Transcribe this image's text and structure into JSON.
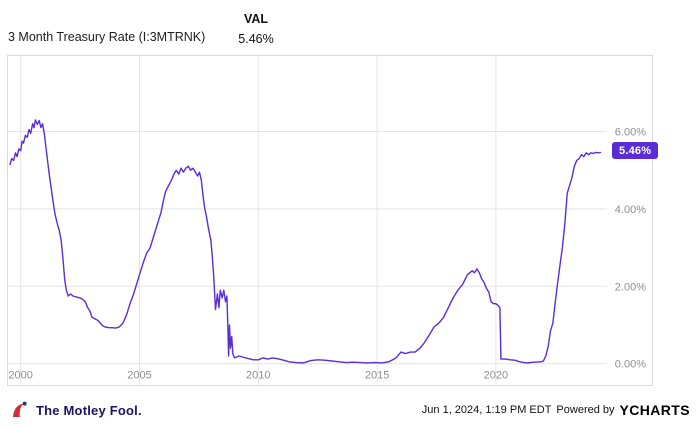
{
  "header": {
    "title": "3 Month Treasury Rate (I:3MTRNK)",
    "val_label": "VAL",
    "val_value": "5.46%"
  },
  "chart_data": {
    "type": "line",
    "title": "3 Month Treasury Rate (I:3MTRNK)",
    "xlabel": "",
    "ylabel": "",
    "xlim": [
      1999.55,
      2024.55
    ],
    "ylim": [
      -0.55,
      7.95
    ],
    "grid": true,
    "line_color": "#5b2dd5",
    "x_ticks": [
      {
        "x": 2000,
        "label": "2000"
      },
      {
        "x": 2005,
        "label": "2005"
      },
      {
        "x": 2010,
        "label": "2010"
      },
      {
        "x": 2015,
        "label": "2015"
      },
      {
        "x": 2020,
        "label": "2020"
      }
    ],
    "y_ticks": [
      {
        "v": 0,
        "label": "0.00%"
      },
      {
        "v": 2,
        "label": "2.00%"
      },
      {
        "v": 4,
        "label": "4.00%"
      },
      {
        "v": 6,
        "label": "6.00%"
      }
    ],
    "badge": {
      "label": "5.46%",
      "bg": "#5b2dd5",
      "text_color": "#ffffff"
    },
    "series": [
      {
        "name": "3 Month Treasury Rate",
        "points": [
          [
            1999.55,
            5.15
          ],
          [
            1999.62,
            5.3
          ],
          [
            1999.7,
            5.25
          ],
          [
            1999.78,
            5.45
          ],
          [
            1999.85,
            5.35
          ],
          [
            1999.92,
            5.55
          ],
          [
            2000.0,
            5.5
          ],
          [
            2000.06,
            5.75
          ],
          [
            2000.12,
            5.7
          ],
          [
            2000.2,
            5.9
          ],
          [
            2000.28,
            5.85
          ],
          [
            2000.35,
            6.05
          ],
          [
            2000.42,
            5.95
          ],
          [
            2000.5,
            6.2
          ],
          [
            2000.56,
            6.1
          ],
          [
            2000.62,
            6.3
          ],
          [
            2000.7,
            6.18
          ],
          [
            2000.78,
            6.28
          ],
          [
            2000.85,
            6.1
          ],
          [
            2000.92,
            6.2
          ],
          [
            2001.0,
            5.9
          ],
          [
            2001.06,
            5.6
          ],
          [
            2001.12,
            5.3
          ],
          [
            2001.2,
            4.9
          ],
          [
            2001.28,
            4.55
          ],
          [
            2001.36,
            4.2
          ],
          [
            2001.45,
            3.85
          ],
          [
            2001.55,
            3.6
          ],
          [
            2001.62,
            3.45
          ],
          [
            2001.7,
            3.2
          ],
          [
            2001.78,
            2.7
          ],
          [
            2001.85,
            2.2
          ],
          [
            2001.92,
            1.9
          ],
          [
            2002.0,
            1.75
          ],
          [
            2002.1,
            1.8
          ],
          [
            2002.2,
            1.75
          ],
          [
            2002.35,
            1.72
          ],
          [
            2002.5,
            1.7
          ],
          [
            2002.62,
            1.66
          ],
          [
            2002.72,
            1.6
          ],
          [
            2002.82,
            1.45
          ],
          [
            2002.92,
            1.35
          ],
          [
            2003.0,
            1.2
          ],
          [
            2003.12,
            1.16
          ],
          [
            2003.25,
            1.12
          ],
          [
            2003.35,
            1.05
          ],
          [
            2003.45,
            0.98
          ],
          [
            2003.55,
            0.95
          ],
          [
            2003.7,
            0.93
          ],
          [
            2003.85,
            0.93
          ],
          [
            2004.0,
            0.92
          ],
          [
            2004.15,
            0.95
          ],
          [
            2004.3,
            1.05
          ],
          [
            2004.45,
            1.25
          ],
          [
            2004.6,
            1.55
          ],
          [
            2004.75,
            1.8
          ],
          [
            2004.9,
            2.1
          ],
          [
            2005.0,
            2.3
          ],
          [
            2005.15,
            2.6
          ],
          [
            2005.3,
            2.85
          ],
          [
            2005.45,
            3.0
          ],
          [
            2005.6,
            3.3
          ],
          [
            2005.75,
            3.6
          ],
          [
            2005.9,
            3.9
          ],
          [
            2006.0,
            4.2
          ],
          [
            2006.1,
            4.45
          ],
          [
            2006.22,
            4.6
          ],
          [
            2006.35,
            4.75
          ],
          [
            2006.45,
            4.9
          ],
          [
            2006.55,
            5.0
          ],
          [
            2006.65,
            4.9
          ],
          [
            2006.75,
            5.05
          ],
          [
            2006.85,
            4.95
          ],
          [
            2006.95,
            5.05
          ],
          [
            2007.05,
            5.1
          ],
          [
            2007.15,
            5.0
          ],
          [
            2007.25,
            5.05
          ],
          [
            2007.35,
            4.95
          ],
          [
            2007.45,
            4.85
          ],
          [
            2007.52,
            4.95
          ],
          [
            2007.6,
            4.75
          ],
          [
            2007.68,
            4.3
          ],
          [
            2007.75,
            4.0
          ],
          [
            2007.82,
            3.8
          ],
          [
            2007.9,
            3.5
          ],
          [
            2008.0,
            3.2
          ],
          [
            2008.06,
            2.8
          ],
          [
            2008.12,
            2.3
          ],
          [
            2008.2,
            1.4
          ],
          [
            2008.28,
            1.8
          ],
          [
            2008.34,
            1.45
          ],
          [
            2008.4,
            1.9
          ],
          [
            2008.48,
            1.7
          ],
          [
            2008.55,
            1.9
          ],
          [
            2008.62,
            1.6
          ],
          [
            2008.68,
            1.75
          ],
          [
            2008.72,
            0.9
          ],
          [
            2008.75,
            0.2
          ],
          [
            2008.79,
            1.0
          ],
          [
            2008.83,
            0.4
          ],
          [
            2008.88,
            0.7
          ],
          [
            2008.93,
            0.25
          ],
          [
            2009.0,
            0.15
          ],
          [
            2009.2,
            0.2
          ],
          [
            2009.4,
            0.16
          ],
          [
            2009.6,
            0.13
          ],
          [
            2009.8,
            0.1
          ],
          [
            2010.0,
            0.1
          ],
          [
            2010.2,
            0.15
          ],
          [
            2010.4,
            0.12
          ],
          [
            2010.6,
            0.15
          ],
          [
            2010.8,
            0.13
          ],
          [
            2011.0,
            0.1
          ],
          [
            2011.3,
            0.05
          ],
          [
            2011.6,
            0.03
          ],
          [
            2011.9,
            0.02
          ],
          [
            2012.2,
            0.08
          ],
          [
            2012.5,
            0.1
          ],
          [
            2012.8,
            0.09
          ],
          [
            2013.1,
            0.07
          ],
          [
            2013.4,
            0.05
          ],
          [
            2013.7,
            0.03
          ],
          [
            2014.0,
            0.04
          ],
          [
            2014.3,
            0.03
          ],
          [
            2014.6,
            0.02
          ],
          [
            2014.9,
            0.03
          ],
          [
            2015.2,
            0.02
          ],
          [
            2015.5,
            0.05
          ],
          [
            2015.8,
            0.15
          ],
          [
            2016.0,
            0.3
          ],
          [
            2016.2,
            0.26
          ],
          [
            2016.4,
            0.3
          ],
          [
            2016.6,
            0.3
          ],
          [
            2016.8,
            0.4
          ],
          [
            2017.0,
            0.55
          ],
          [
            2017.2,
            0.75
          ],
          [
            2017.4,
            0.95
          ],
          [
            2017.6,
            1.05
          ],
          [
            2017.8,
            1.2
          ],
          [
            2018.0,
            1.45
          ],
          [
            2018.2,
            1.7
          ],
          [
            2018.4,
            1.9
          ],
          [
            2018.6,
            2.05
          ],
          [
            2018.8,
            2.3
          ],
          [
            2019.0,
            2.4
          ],
          [
            2019.1,
            2.35
          ],
          [
            2019.2,
            2.45
          ],
          [
            2019.3,
            2.35
          ],
          [
            2019.4,
            2.2
          ],
          [
            2019.5,
            2.1
          ],
          [
            2019.6,
            1.95
          ],
          [
            2019.7,
            1.85
          ],
          [
            2019.8,
            1.6
          ],
          [
            2019.9,
            1.55
          ],
          [
            2020.0,
            1.55
          ],
          [
            2020.1,
            1.5
          ],
          [
            2020.17,
            1.45
          ],
          [
            2020.21,
            0.12
          ],
          [
            2020.4,
            0.12
          ],
          [
            2020.6,
            0.1
          ],
          [
            2020.8,
            0.09
          ],
          [
            2021.0,
            0.05
          ],
          [
            2021.3,
            0.02
          ],
          [
            2021.6,
            0.04
          ],
          [
            2021.9,
            0.05
          ],
          [
            2022.0,
            0.07
          ],
          [
            2022.1,
            0.2
          ],
          [
            2022.2,
            0.45
          ],
          [
            2022.3,
            0.85
          ],
          [
            2022.4,
            1.05
          ],
          [
            2022.5,
            1.6
          ],
          [
            2022.6,
            2.1
          ],
          [
            2022.7,
            2.55
          ],
          [
            2022.8,
            3.0
          ],
          [
            2022.9,
            3.6
          ],
          [
            2023.0,
            4.4
          ],
          [
            2023.1,
            4.6
          ],
          [
            2023.2,
            4.8
          ],
          [
            2023.3,
            5.1
          ],
          [
            2023.4,
            5.25
          ],
          [
            2023.5,
            5.3
          ],
          [
            2023.6,
            5.4
          ],
          [
            2023.7,
            5.35
          ],
          [
            2023.8,
            5.45
          ],
          [
            2023.9,
            5.4
          ],
          [
            2024.0,
            5.45
          ],
          [
            2024.1,
            5.43
          ],
          [
            2024.2,
            5.46
          ],
          [
            2024.3,
            5.45
          ],
          [
            2024.4,
            5.46
          ]
        ]
      }
    ]
  },
  "footer": {
    "brand_left": "The Motley Fool.",
    "timestamp": "Jun 1, 2024, 1:19 PM EDT",
    "powered_by": "Powered by",
    "brand_right": "YCHARTS"
  }
}
